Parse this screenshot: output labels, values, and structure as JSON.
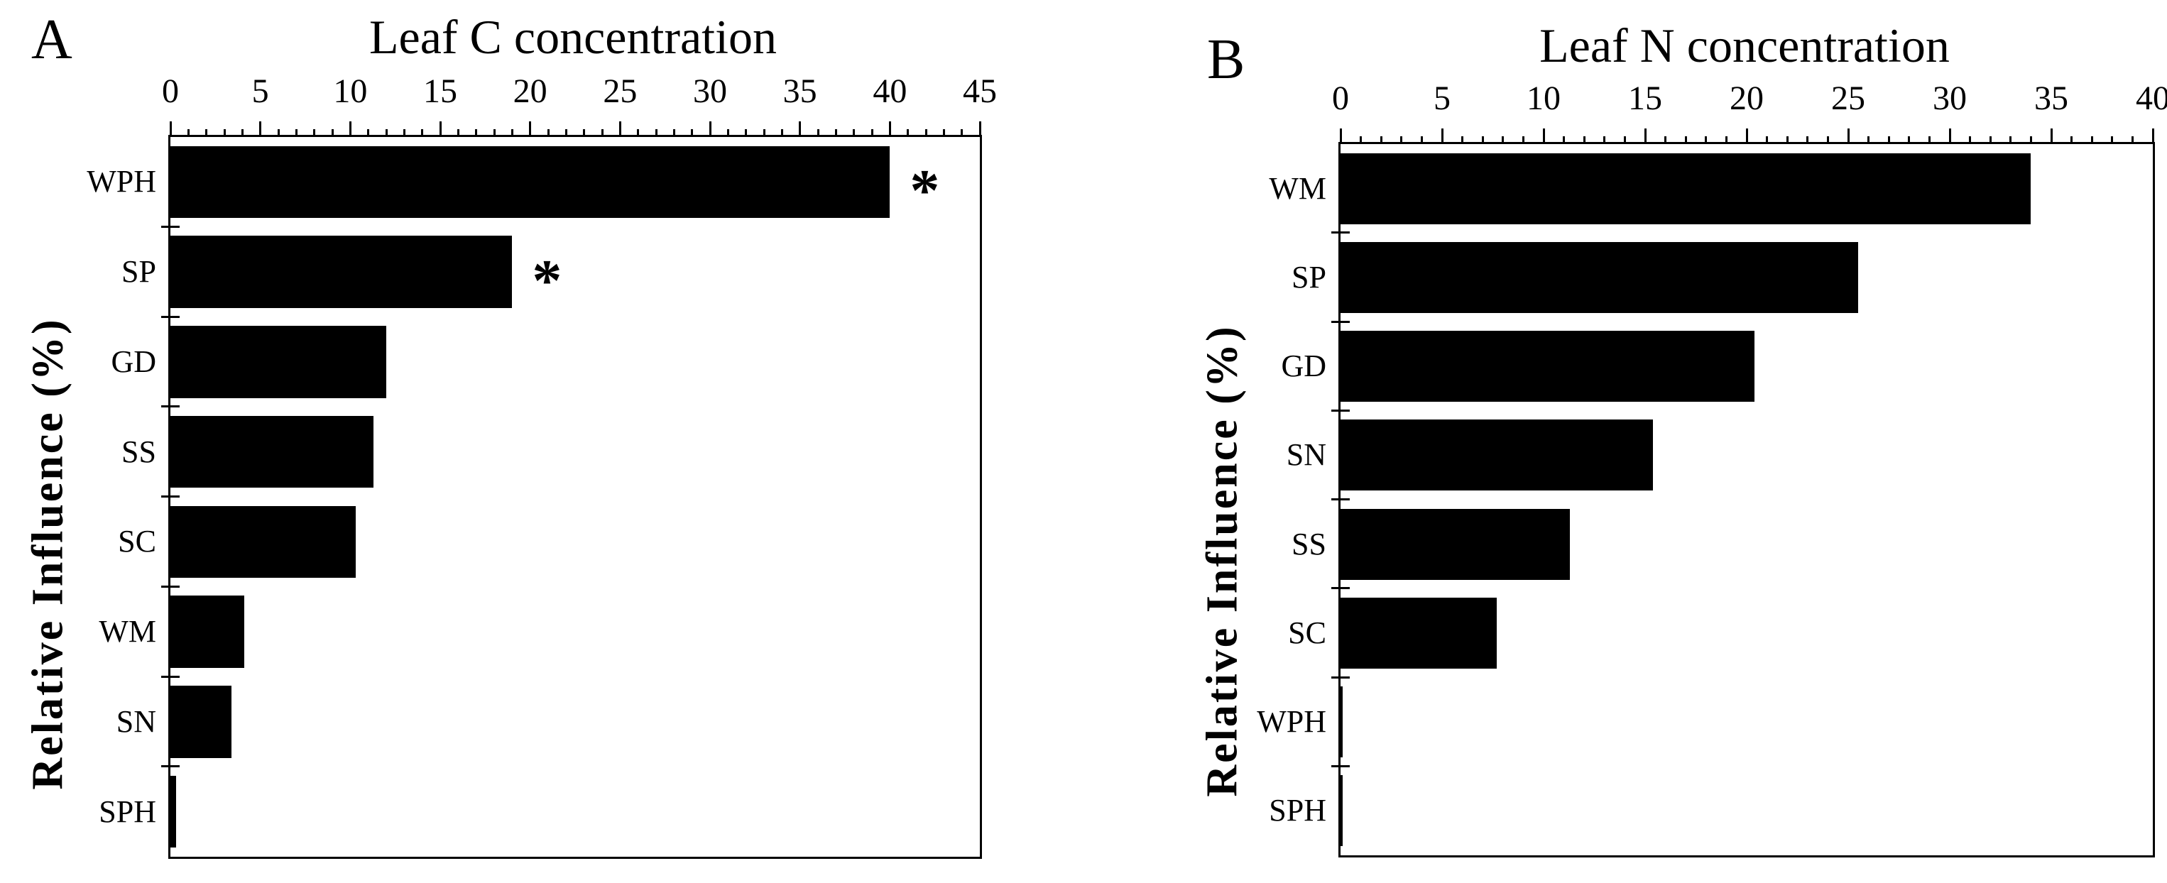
{
  "figure": {
    "background_color": "#ffffff",
    "bar_color": "#000000",
    "text_color": "#000000"
  },
  "chart_data": [
    {
      "type": "bar",
      "orientation": "horizontal",
      "panel_label": "A",
      "title": "Leaf C concentration",
      "ylabel": "Relative Influence (%)",
      "xlim": [
        0,
        45
      ],
      "x_major_ticks": [
        0,
        5,
        10,
        15,
        20,
        25,
        30,
        35,
        40,
        45
      ],
      "x_minor_tick_step": 1,
      "axis_position": "top",
      "grid": false,
      "legend": false,
      "bar_color": "#000000",
      "categories": [
        "WPH",
        "SP",
        "GD",
        "SS",
        "SC",
        "WM",
        "SN",
        "SPH"
      ],
      "values": [
        40.0,
        19.0,
        12.0,
        11.3,
        10.3,
        4.1,
        3.4,
        0.3
      ],
      "significance": [
        "*",
        "*",
        "",
        "",
        "",
        "",
        "",
        ""
      ]
    },
    {
      "type": "bar",
      "orientation": "horizontal",
      "panel_label": "B",
      "title": "Leaf N concentration",
      "ylabel": "Relative Influence (%)",
      "xlim": [
        0,
        40
      ],
      "x_major_ticks": [
        0,
        5,
        10,
        15,
        20,
        25,
        30,
        35,
        40
      ],
      "x_minor_tick_step": 1,
      "axis_position": "top",
      "grid": false,
      "legend": false,
      "bar_color": "#000000",
      "categories": [
        "WM",
        "SP",
        "GD",
        "SN",
        "SS",
        "SC",
        "WPH",
        "SPH"
      ],
      "values": [
        34.0,
        25.5,
        20.4,
        15.4,
        11.3,
        7.7,
        0.1,
        0.1
      ],
      "significance": [
        "",
        "",
        "",
        "",
        "",
        "",
        "",
        ""
      ]
    }
  ]
}
